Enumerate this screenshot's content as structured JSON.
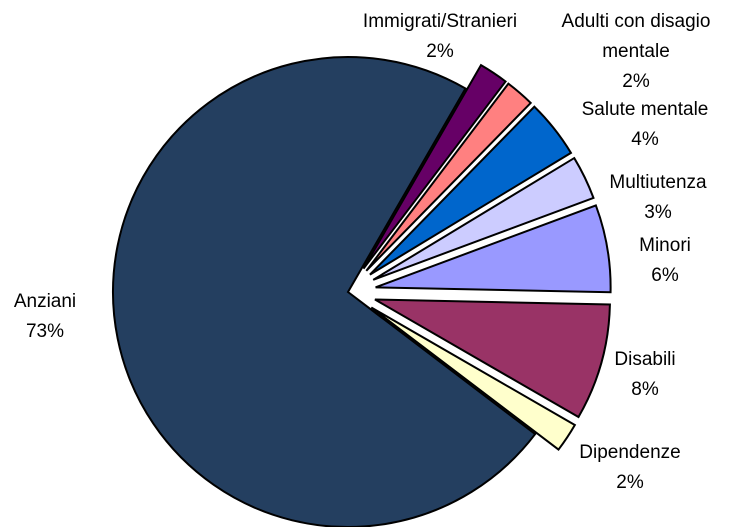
{
  "chart_data": {
    "type": "pie",
    "categories": [
      "Immigrati/Stranieri",
      "Adulti con disagio mentale",
      "Salute mentale",
      "Multiutenza",
      "Minori",
      "Disabili",
      "Dipendenze",
      "Anziani"
    ],
    "values": [
      2,
      2,
      4,
      3,
      6,
      8,
      2,
      73
    ],
    "value_labels": [
      "2%",
      "2%",
      "4%",
      "3%",
      "6%",
      "8%",
      "2%",
      "73%"
    ],
    "colors": [
      "#660066",
      "#ff8080",
      "#0066cc",
      "#ccccff",
      "#9999ff",
      "#993366",
      "#ffffcc",
      "#243f60"
    ]
  }
}
